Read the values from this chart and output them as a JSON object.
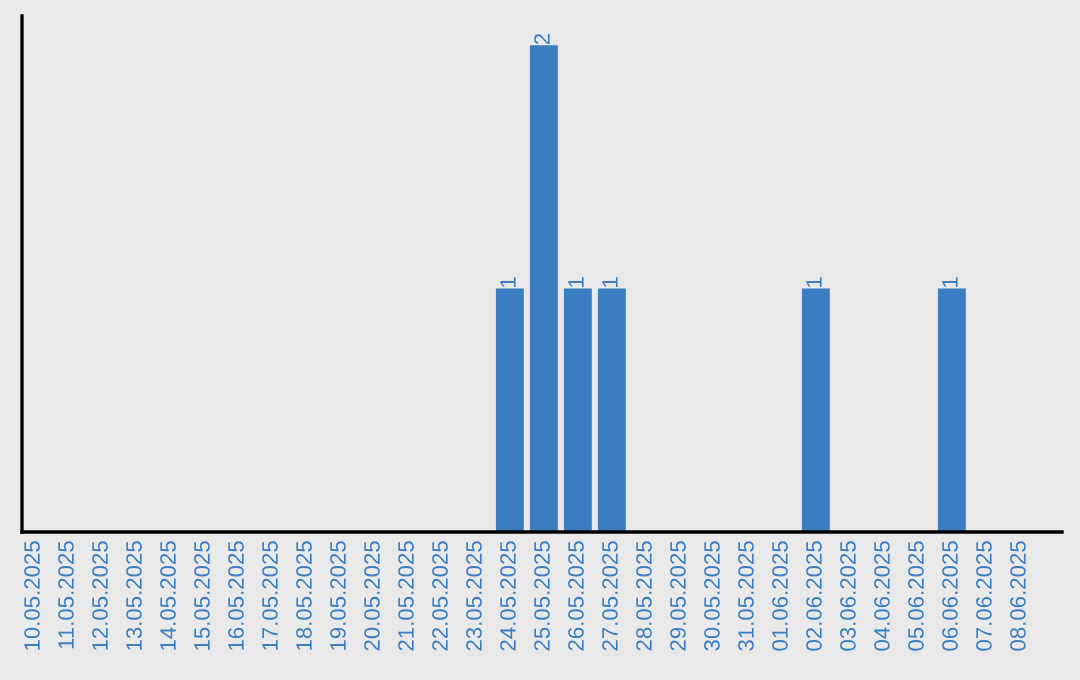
{
  "chart_data": {
    "type": "bar",
    "categories": [
      "10.05.2025",
      "11.05.2025",
      "12.05.2025",
      "13.05.2025",
      "14.05.2025",
      "15.05.2025",
      "16.05.2025",
      "17.05.2025",
      "18.05.2025",
      "19.05.2025",
      "20.05.2025",
      "21.05.2025",
      "22.05.2025",
      "23.05.2025",
      "24.05.2025",
      "25.05.2025",
      "26.05.2025",
      "27.05.2025",
      "28.05.2025",
      "29.05.2025",
      "30.05.2025",
      "31.05.2025",
      "01.06.2025",
      "02.06.2025",
      "03.06.2025",
      "04.06.2025",
      "05.06.2025",
      "06.06.2025",
      "07.06.2025",
      "08.06.2025"
    ],
    "values": [
      null,
      null,
      null,
      null,
      null,
      null,
      null,
      null,
      null,
      null,
      null,
      null,
      null,
      null,
      1,
      2,
      1,
      1,
      null,
      null,
      null,
      null,
      null,
      1,
      null,
      null,
      null,
      1,
      null,
      null
    ],
    "value_labels": [
      null,
      null,
      null,
      null,
      null,
      null,
      null,
      null,
      null,
      null,
      null,
      null,
      null,
      null,
      "1",
      "2",
      "1",
      "1",
      null,
      null,
      null,
      null,
      null,
      "1",
      null,
      null,
      null,
      "1",
      null,
      null
    ],
    "color": "#3a7dc1",
    "grid": false,
    "legend": false,
    "tick_labels": "x"
  }
}
